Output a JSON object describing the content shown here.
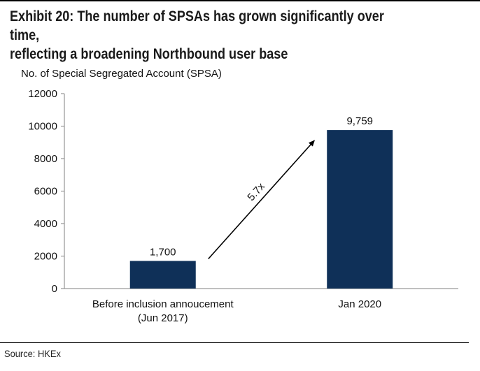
{
  "header": {
    "title_line1": "Exhibit 20: The number of SPSAs has grown significantly over time,",
    "title_line2": "reflecting a broadening Northbound user base"
  },
  "footer": {
    "source": "Source: HKEx"
  },
  "colors": {
    "bar": "#0f3058",
    "axis": "#808080",
    "text": "#111111"
  },
  "chart_data": {
    "type": "bar",
    "title": "Exhibit 20: The number of SPSAs has grown significantly over time, reflecting a broadening Northbound user base",
    "ylabel": "No. of Special Segregated Account (SPSA)",
    "xlabel": "",
    "categories": [
      [
        "Before inclusion annoucement",
        "(Jun 2017)"
      ],
      [
        "Jan 2020"
      ]
    ],
    "values": [
      1700,
      9759
    ],
    "data_labels": [
      "1,700",
      "9,759"
    ],
    "ylim": [
      0,
      12000
    ],
    "yticks": [
      0,
      2000,
      4000,
      6000,
      8000,
      10000,
      12000
    ],
    "grid": false,
    "legend": "none",
    "annotations": [
      {
        "text": "5.7x",
        "type": "arrow",
        "from_category": 0,
        "to_category": 1
      }
    ]
  }
}
